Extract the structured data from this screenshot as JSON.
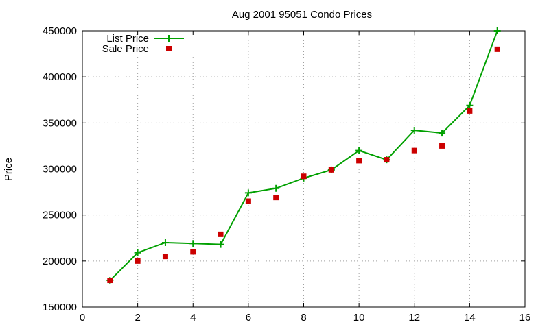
{
  "chart_data": {
    "type": "line",
    "title": "Aug 2001 95051 Condo Prices",
    "xlabel": "",
    "ylabel": "Price",
    "xlim": [
      0,
      16
    ],
    "ylim": [
      150000,
      450000
    ],
    "xticks": [
      0,
      2,
      4,
      6,
      8,
      10,
      12,
      14,
      16
    ],
    "yticks": [
      150000,
      200000,
      250000,
      300000,
      350000,
      400000,
      450000
    ],
    "grid": true,
    "legend_position": "top-left",
    "series": [
      {
        "name": "List Price",
        "style": "line-with-plus-markers",
        "color": "#00a000",
        "x": [
          1,
          2,
          3,
          4,
          5,
          6,
          7,
          8,
          9,
          10,
          11,
          12,
          13,
          14,
          15
        ],
        "y": [
          179000,
          209000,
          220000,
          219000,
          218000,
          274000,
          279000,
          290000,
          299000,
          320000,
          310000,
          342000,
          339000,
          369000,
          450000
        ]
      },
      {
        "name": "Sale Price",
        "style": "square-markers",
        "color": "#cc0000",
        "x": [
          1,
          2,
          3,
          4,
          5,
          6,
          7,
          8,
          9,
          10,
          11,
          12,
          13,
          14,
          15
        ],
        "y": [
          179000,
          200000,
          205000,
          210000,
          229000,
          265000,
          269000,
          292000,
          299000,
          309000,
          310000,
          320000,
          325000,
          363000,
          430000
        ]
      }
    ]
  }
}
